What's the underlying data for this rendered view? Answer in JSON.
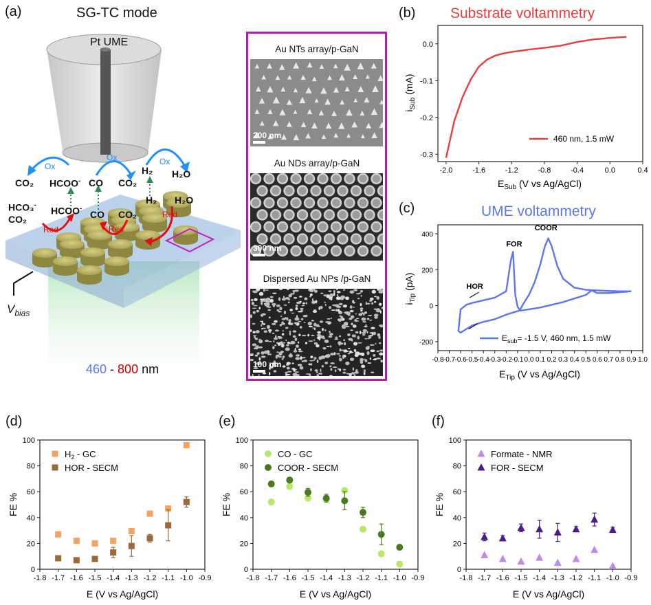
{
  "panels": {
    "a": {
      "label": "(a)",
      "title": "SG-TC mode",
      "ume_label": "Pt UME",
      "species": {
        "co2_left": "CO₂",
        "hcoo_top": "HCOO",
        "hcoo_top_charge": "-",
        "co_top": "CO",
        "co2_top": "CO₂",
        "h2_top": "H₂",
        "h2o_top": "H₂O",
        "hco3": "HCO₃",
        "hco3_charge": "-",
        "co2_lower": "CO₂",
        "hcoo_bottom": "HCOO",
        "hcoo_bottom_charge": "-",
        "co_bottom": "CO",
        "co2_bottom": "CO₂",
        "h2_bottom": "H₂",
        "h2o_bottom": "H₂O"
      },
      "ox_label": "Ox",
      "red_label": "Red",
      "vbias": "V",
      "vbias_sub": "bias",
      "wavelength": {
        "start": "460",
        "dash": " - ",
        "end": "800",
        "unit": " nm"
      }
    },
    "sem": {
      "images": [
        {
          "title": "Au NTs array/p-GaN",
          "scale": "200 nm"
        },
        {
          "title": "Au NDs array/p-GaN",
          "scale": "300 nm"
        },
        {
          "title": "Dispersed Au NPs /p-GaN",
          "scale": "100 nm"
        }
      ]
    }
  },
  "colors": {
    "red": "#ee3b3b",
    "blue": "#5b76f0",
    "orange": "#f4a460",
    "brown": "#9a6a3a",
    "light_green": "#b7e86a",
    "dark_green": "#4a7a1e",
    "light_purple": "#c08ae8",
    "dark_purple": "#4b1a8a",
    "magenta": "#b21eb2"
  },
  "chart_data": [
    {
      "id": "b",
      "panel_label": "(b)",
      "type": "line",
      "title": "Substrate voltammetry",
      "xlabel": "E",
      "xlabel_sub": "Sub",
      "xlabel_rest": " (V vs Ag/AgCl)",
      "ylabel": "i",
      "ylabel_sub": "Sub",
      "ylabel_rest": " (mA)",
      "xlim": [
        -2.1,
        0.4
      ],
      "ylim": [
        -0.32,
        0.05
      ],
      "xticks": [
        "-2.0",
        "-1.6",
        "-1.2",
        "-0.8",
        "-0.4",
        "0.0",
        "0.4"
      ],
      "yticks": [
        "0.0",
        "-0.1",
        "-0.2",
        "-0.3"
      ],
      "series": [
        {
          "name": "460 nm, 1.5 mW",
          "x": [
            -2.0,
            -1.9,
            -1.8,
            -1.7,
            -1.6,
            -1.5,
            -1.4,
            -1.3,
            -1.2,
            -1.0,
            -0.8,
            -0.6,
            -0.4,
            -0.2,
            0.0,
            0.2
          ],
          "y": [
            -0.31,
            -0.21,
            -0.145,
            -0.097,
            -0.062,
            -0.043,
            -0.032,
            -0.026,
            -0.022,
            -0.016,
            -0.011,
            -0.005,
            0.005,
            0.012,
            0.016,
            0.019
          ]
        }
      ]
    },
    {
      "id": "c",
      "panel_label": "(c)",
      "type": "line",
      "title": "UME voltammetry",
      "xlabel": "E",
      "xlabel_sub": "Tip",
      "xlabel_rest": " (V vs Ag/AgCl)",
      "ylabel": "i",
      "ylabel_sub": "Tip",
      "ylabel_rest": " (pA)",
      "xlim": [
        -0.8,
        1.0
      ],
      "ylim": [
        -250,
        450
      ],
      "xticks": [
        "-0.8",
        "-0.7",
        "-0.6",
        "-0.5",
        "-0.4",
        "-0.3",
        "-0.2",
        "-0.1",
        "0.0",
        "0.1",
        "0.2",
        "0.3",
        "0.4",
        "0.5",
        "0.6",
        "0.7",
        "0.8",
        "0.9",
        "1.0"
      ],
      "yticks": [
        "400",
        "200",
        "0",
        "-200"
      ],
      "annotations": {
        "hor": "HOR",
        "for": "FOR",
        "coor": "COOR"
      },
      "legend": {
        "prefix": "E",
        "sub": "sub",
        "rest": "= -1.5 V, 460 nm, 1.5 mW"
      },
      "series": [
        {
          "name": "E_sub = -1.5 V, 460 nm, 1.5 mW",
          "x": [
            0.9,
            0.8,
            0.7,
            0.6,
            0.5,
            0.4,
            0.3,
            0.25,
            0.2,
            0.17,
            0.14,
            0.1,
            0.05,
            0.0,
            -0.05,
            -0.08,
            -0.1,
            -0.12,
            -0.13,
            -0.14,
            -0.16,
            -0.2,
            -0.3,
            -0.4,
            -0.5,
            -0.55,
            -0.6,
            -0.62,
            -0.6,
            -0.55,
            -0.5,
            -0.4,
            -0.3,
            -0.2,
            -0.1,
            0.0,
            0.1,
            0.2,
            0.3,
            0.4,
            0.5,
            0.55,
            0.6,
            0.7,
            0.8,
            0.9
          ],
          "y": [
            80,
            80,
            82,
            85,
            88,
            100,
            150,
            220,
            330,
            375,
            330,
            230,
            130,
            60,
            10,
            -25,
            -5,
            60,
            180,
            300,
            250,
            80,
            45,
            30,
            15,
            5,
            -20,
            -140,
            -150,
            -130,
            -110,
            -90,
            -75,
            -50,
            -30,
            -20,
            -10,
            5,
            20,
            40,
            60,
            85,
            70,
            70,
            75,
            80
          ]
        }
      ]
    },
    {
      "id": "d",
      "panel_label": "(d)",
      "type": "scatter",
      "xlabel": "E (V vs Ag/AgCl)",
      "ylabel": "FE %",
      "xlim": [
        -1.8,
        -0.9
      ],
      "ylim": [
        0,
        100
      ],
      "xticks": [
        "-1.8",
        "-1.7",
        "-1.6",
        "-1.5",
        "-1.4",
        "-1.3",
        "-1.2",
        "-1.1",
        "-1.0",
        "-0.9"
      ],
      "yticks": [
        "100",
        "80",
        "60",
        "40",
        "20",
        "0"
      ],
      "series": [
        {
          "name": "H",
          "name_sub": "2",
          "name_rest": " - GC",
          "marker": "square",
          "color": "#f4a460",
          "x": [
            -1.7,
            -1.6,
            -1.5,
            -1.4,
            -1.3,
            -1.2,
            -1.1,
            -1.0
          ],
          "y": [
            27,
            22,
            20,
            22,
            29.5,
            43,
            47,
            96
          ]
        },
        {
          "name": "HOR - SECM",
          "marker": "square",
          "color": "#9a6a3a",
          "x": [
            -1.7,
            -1.6,
            -1.5,
            -1.4,
            -1.3,
            -1.2,
            -1.1,
            -1.0
          ],
          "y": [
            8.5,
            7,
            8,
            13,
            18,
            24,
            34,
            52
          ],
          "err": [
            1,
            1,
            1,
            4,
            8,
            3,
            12,
            4
          ]
        }
      ]
    },
    {
      "id": "e",
      "panel_label": "(e)",
      "type": "scatter",
      "xlabel": "E (V vs Ag/AgCl)",
      "ylabel": "FE %",
      "xlim": [
        -1.8,
        -0.9
      ],
      "ylim": [
        0,
        100
      ],
      "xticks": [
        "-1.8",
        "-1.7",
        "-1.6",
        "-1.5",
        "-1.4",
        "-1.3",
        "-1.2",
        "-1.1",
        "-1.0",
        "-0.9"
      ],
      "yticks": [
        "100",
        "80",
        "60",
        "40",
        "20",
        "0"
      ],
      "series": [
        {
          "name": "CO - GC",
          "marker": "circle",
          "color": "#b7e86a",
          "x": [
            -1.7,
            -1.6,
            -1.5,
            -1.4,
            -1.3,
            -1.2,
            -1.1,
            -1.0
          ],
          "y": [
            52,
            64,
            55,
            54,
            61,
            31,
            12,
            4
          ]
        },
        {
          "name": "COOR - SECM",
          "marker": "circle",
          "color": "#4a7a1e",
          "x": [
            -1.7,
            -1.6,
            -1.5,
            -1.4,
            -1.3,
            -1.2,
            -1.1,
            -1.0
          ],
          "y": [
            66,
            69,
            59.5,
            55,
            53,
            44,
            27,
            17
          ],
          "err": [
            2,
            2,
            3,
            3,
            7,
            4,
            8,
            2
          ]
        }
      ]
    },
    {
      "id": "f",
      "panel_label": "(f)",
      "type": "scatter",
      "xlabel": "E (V vs Ag/AgCl)",
      "ylabel": "FE %",
      "xlim": [
        -1.8,
        -0.9
      ],
      "ylim": [
        0,
        100
      ],
      "xticks": [
        "-1.8",
        "-1.7",
        "-1.6",
        "-1.5",
        "-1.4",
        "-1.3",
        "-1.2",
        "-1.1",
        "-1.0",
        "-0.9"
      ],
      "yticks": [
        "100",
        "80",
        "60",
        "40",
        "20",
        "0"
      ],
      "series": [
        {
          "name": "Formate - NMR",
          "marker": "triangle",
          "color": "#c08ae8",
          "x": [
            -1.7,
            -1.6,
            -1.5,
            -1.4,
            -1.3,
            -1.2,
            -1.1,
            -1.0
          ],
          "y": [
            11,
            8,
            6,
            9,
            5,
            8,
            15,
            2.5
          ]
        },
        {
          "name": "FOR - SECM",
          "marker": "triangle",
          "color": "#4b1a8a",
          "x": [
            -1.7,
            -1.6,
            -1.5,
            -1.4,
            -1.3,
            -1.2,
            -1.1,
            -1.0
          ],
          "y": [
            25,
            24,
            32,
            31,
            28.5,
            31,
            38.5,
            30.5
          ],
          "err": [
            3,
            2,
            3,
            7,
            7,
            2,
            5,
            2
          ]
        }
      ]
    }
  ]
}
